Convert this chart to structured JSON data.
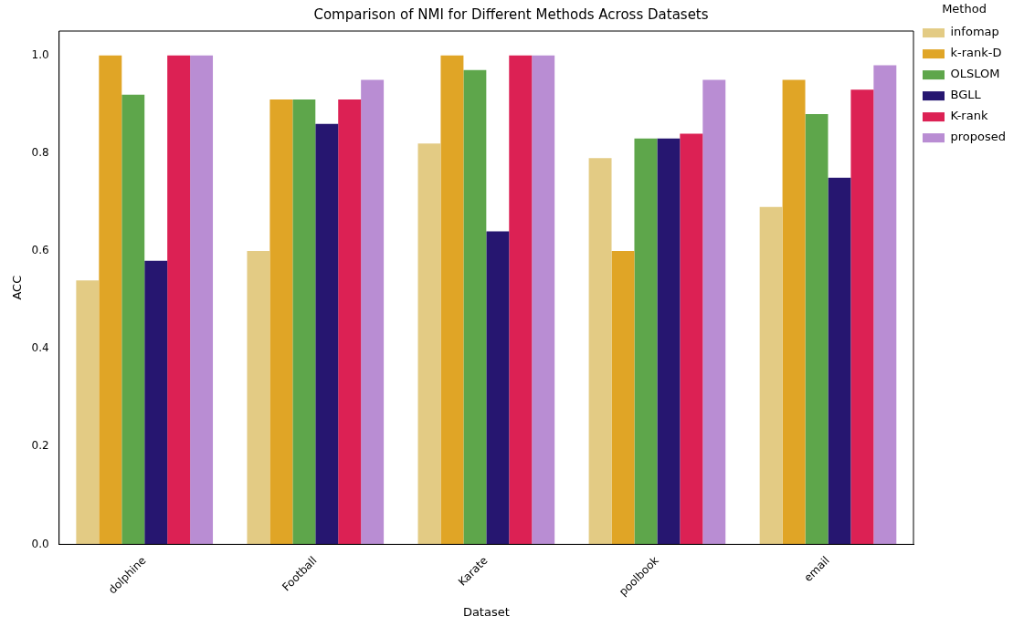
{
  "chart_data": {
    "type": "bar",
    "title": "Comparison of NMI for Different Methods Across Datasets",
    "xlabel": "Dataset",
    "ylabel": "ACC",
    "legend_title": "Method",
    "categories": [
      "dolphine",
      "Football",
      "Karate",
      "poolbook",
      "email"
    ],
    "series": [
      {
        "name": "infomap",
        "color": "#e3cb84",
        "values": [
          0.54,
          0.6,
          0.82,
          0.79,
          0.69
        ]
      },
      {
        "name": "k-rank-D",
        "color": "#e0a526",
        "values": [
          1.0,
          0.91,
          1.0,
          0.6,
          0.95
        ]
      },
      {
        "name": "OLSLOM",
        "color": "#5ea64b",
        "values": [
          0.92,
          0.91,
          0.97,
          0.83,
          0.88
        ]
      },
      {
        "name": "BGLL",
        "color": "#261670",
        "values": [
          0.58,
          0.86,
          0.64,
          0.83,
          0.75
        ]
      },
      {
        "name": "K-rank",
        "color": "#dc2154",
        "values": [
          1.0,
          0.91,
          1.0,
          0.84,
          0.93
        ]
      },
      {
        "name": "proposed",
        "color": "#b98dd3",
        "values": [
          1.0,
          0.95,
          1.0,
          0.95,
          0.98
        ]
      }
    ],
    "ylim": [
      0,
      1.05
    ],
    "yticks": [
      {
        "value": 0,
        "label": "0.0"
      },
      0.2,
      0.4,
      0.6,
      0.8,
      {
        "value": 1,
        "label": "1.0"
      }
    ],
    "grid": false,
    "legend": "top right"
  }
}
